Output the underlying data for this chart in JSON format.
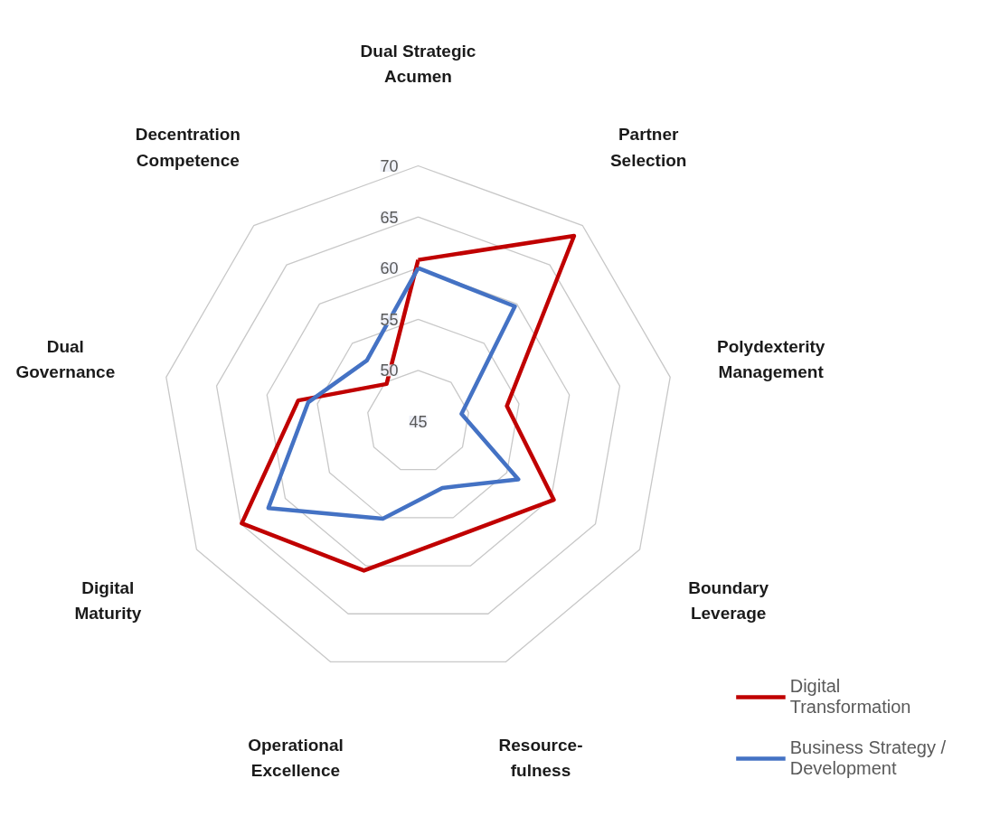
{
  "chart_data": {
    "type": "radar",
    "categories": [
      "Dual Strategic Acumen",
      "Partner Selection",
      "Polydexterity Management",
      "Boundary Leverage",
      "Resource-fulness",
      "Operational Excellence",
      "Digital Maturity",
      "Dual Governance",
      "Decentration Competence"
    ],
    "series": [
      {
        "name": "Digital Transformation",
        "color": "#c00000",
        "values": [
          60.8,
          68.7,
          53.8,
          60.3,
          56.8,
          60.5,
          64.9,
          56.9,
          49.8
        ]
      },
      {
        "name": "Business Strategy / Development",
        "color": "#4472c4",
        "values": [
          60,
          59.7,
          49.3,
          56.3,
          51.9,
          55.1,
          61.9,
          55.9,
          52.8
        ]
      }
    ],
    "ylim": [
      45,
      70
    ],
    "yticks": [
      45,
      50,
      55,
      60,
      65,
      70
    ],
    "grid": true,
    "legend": "bottom right",
    "marker": "none",
    "line_style": "solid"
  }
}
